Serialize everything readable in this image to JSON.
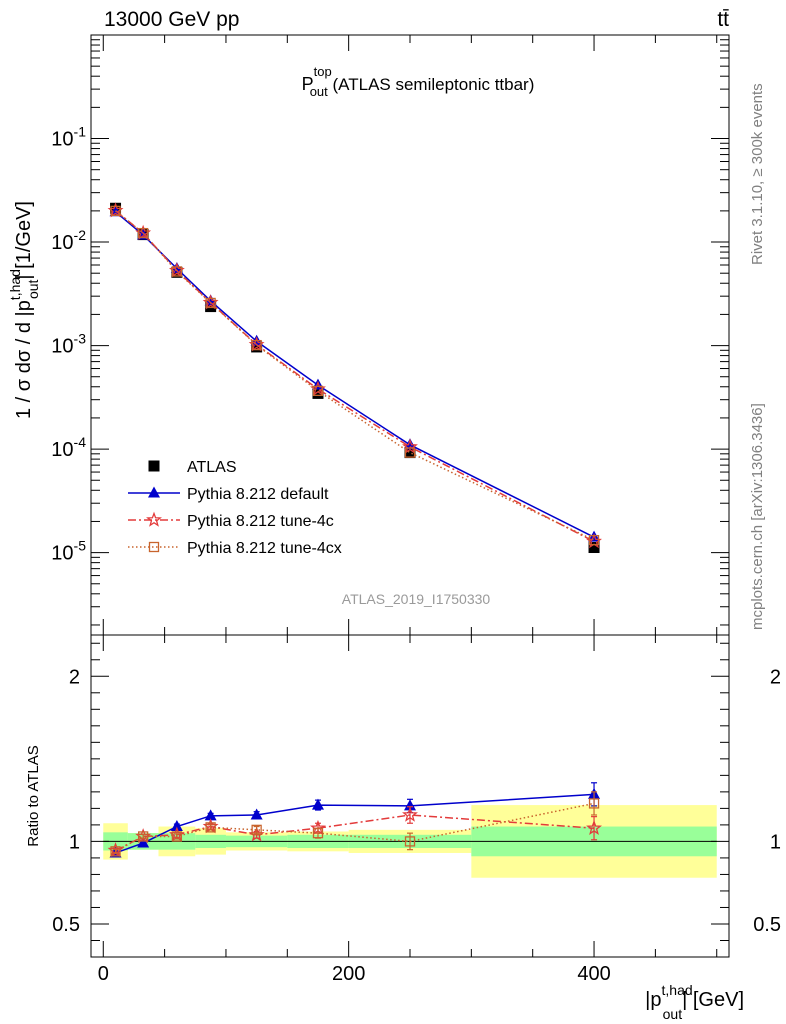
{
  "header": {
    "energy_label": "13000 GeV pp",
    "process_label": "tt̄"
  },
  "side_labels": {
    "rivet": "Rivet 3.1.10, ≥ 300k events",
    "mcplots": "mcplots.cern.ch [arXiv:1306.3436]"
  },
  "colors": {
    "data": "#000000",
    "default": "#0000cc",
    "tune4c": "#e33b3b",
    "tune4cx": "#c8642d",
    "band_inner": "#99ff99",
    "band_outer": "#ffff99"
  },
  "chart_data": [
    {
      "type": "line",
      "scale": "log",
      "title": {
        "main": "P",
        "sup": "top",
        "sub": "out",
        "rest": " (ATLAS semileptonic ttbar)"
      },
      "ylabel": {
        "prefix": "1 / σ dσ / d |p",
        "sup": "t,had",
        "sub": "out",
        "suffix": "| [1/GeV]"
      },
      "reference": "ATLAS_2019_I1750330",
      "xlim": [
        -10,
        510
      ],
      "ylim": [
        1.6e-06,
        1.0
      ],
      "yticks": [
        {
          "v": 1e-05,
          "exp": "-5"
        },
        {
          "v": 0.0001,
          "exp": "-4"
        },
        {
          "v": 0.001,
          "exp": "-3"
        },
        {
          "v": 0.01,
          "exp": "-2"
        },
        {
          "v": 0.1,
          "exp": "-1"
        }
      ],
      "x": [
        10,
        32.5,
        60,
        87.5,
        125,
        175,
        250,
        400
      ],
      "series": [
        {
          "name": "ATLAS",
          "key": "data",
          "marker": "square",
          "values": [
            0.0212,
            0.0118,
            0.0051,
            0.00238,
            0.00097,
            0.000345,
            9.25e-05,
            1.12e-05
          ]
        },
        {
          "name": "Pythia 8.212 default",
          "key": "default",
          "marker": "triangle",
          "line": "solid",
          "values": [
            0.0196,
            0.0117,
            0.00555,
            0.0027,
            0.0011,
            0.000415,
            0.00011,
            1.41e-05
          ]
        },
        {
          "name": "Pythia 8.212 tune-4c",
          "key": "tune4c",
          "marker": "star",
          "line": "dashdot",
          "values": [
            0.0201,
            0.0122,
            0.0053,
            0.0026,
            0.00102,
            0.00038,
            0.000105,
            1.28e-05
          ]
        },
        {
          "name": "Pythia 8.212 tune-4cx",
          "key": "tune4cx",
          "marker": "opensquare",
          "line": "dotted",
          "values": [
            0.02,
            0.0122,
            0.0052,
            0.00258,
            0.00101,
            0.000365,
            9.25e-05,
            1.32e-05
          ]
        }
      ]
    },
    {
      "type": "line",
      "scale": "linear",
      "ylabel": "Ratio to ATLAS",
      "xlabel": {
        "prefix": "|p",
        "sup": "t,had",
        "sub": "out",
        "suffix": "| [GeV]"
      },
      "xlim": [
        -10,
        510
      ],
      "ylim": [
        0.3,
        2.25
      ],
      "xticks": [
        {
          "v": 0,
          "label": "0"
        },
        {
          "v": 200,
          "label": "200"
        },
        {
          "v": 400,
          "label": "400"
        }
      ],
      "yticks": [
        {
          "v": 0.5,
          "label": "0.5"
        },
        {
          "v": 1,
          "label": "1"
        },
        {
          "v": 2,
          "label": "2"
        }
      ],
      "bands": {
        "edges": [
          0,
          20,
          45,
          75,
          100,
          150,
          200,
          300,
          500
        ],
        "inner": [
          0.055,
          0.05,
          0.05,
          0.04,
          0.035,
          0.04,
          0.04,
          0.09
        ],
        "outer": [
          0.11,
          0.05,
          0.09,
          0.08,
          0.055,
          0.06,
          0.07,
          0.22
        ]
      },
      "x": [
        10,
        32.5,
        60,
        87.5,
        125,
        175,
        250,
        400
      ],
      "series": [
        {
          "name": "Pythia 8.212 default",
          "key": "default",
          "marker": "triangle",
          "line": "solid",
          "values": [
            0.93,
            0.99,
            1.09,
            1.155,
            1.16,
            1.22,
            1.215,
            1.285
          ],
          "errors": [
            0.012,
            0.012,
            0.015,
            0.015,
            0.02,
            0.03,
            0.04,
            0.07
          ]
        },
        {
          "name": "Pythia 8.212 tune-4c",
          "key": "tune4c",
          "marker": "star",
          "line": "dashdot",
          "values": [
            0.945,
            1.03,
            1.04,
            1.09,
            1.04,
            1.08,
            1.16,
            1.08
          ],
          "errors": [
            0.012,
            0.012,
            0.015,
            0.015,
            0.02,
            0.03,
            0.05,
            0.07
          ]
        },
        {
          "name": "Pythia 8.212 tune-4cx",
          "key": "tune4cx",
          "marker": "opensquare",
          "line": "dotted",
          "values": [
            0.94,
            1.03,
            1.03,
            1.085,
            1.07,
            1.05,
            1.0,
            1.23
          ],
          "errors": [
            0.012,
            0.012,
            0.015,
            0.015,
            0.02,
            0.03,
            0.05,
            0.07
          ]
        }
      ]
    }
  ]
}
